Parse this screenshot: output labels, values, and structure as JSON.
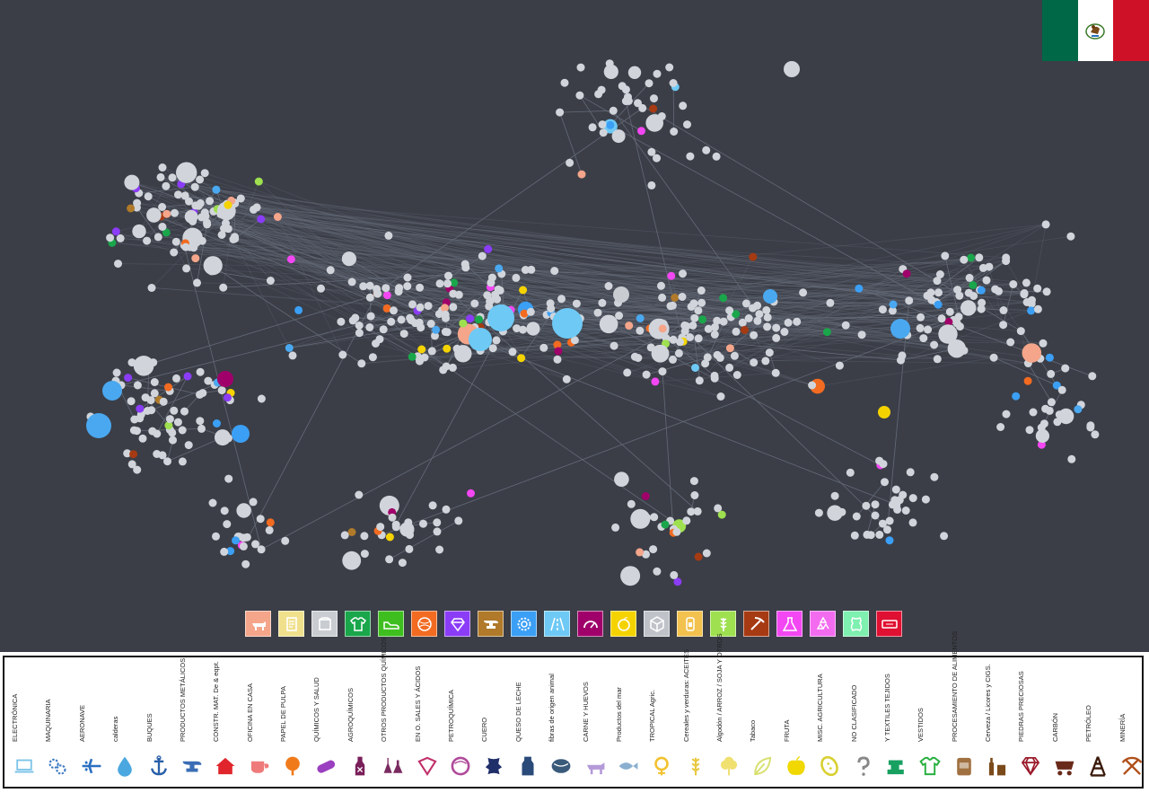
{
  "network": {
    "background": "#3b3e47",
    "edge_color": "#6b7280",
    "default_node_color": "#d1d5db"
  },
  "flag": {
    "icon": "mexico-flag-icon",
    "colors": [
      "#006847",
      "#ffffff",
      "#ce1126"
    ]
  },
  "category_bar": [
    {
      "icon": "cow-icon",
      "color": "#f4a58a"
    },
    {
      "icon": "document-icon",
      "color": "#f0e08c"
    },
    {
      "icon": "box-outline-icon",
      "color": "#c9ccd1"
    },
    {
      "icon": "shirt-icon",
      "color": "#1aa64b"
    },
    {
      "icon": "shoe-icon",
      "color": "#3fbf1f"
    },
    {
      "icon": "globe-icon",
      "color": "#f26b21"
    },
    {
      "icon": "diamond-icon",
      "color": "#8b3cf7"
    },
    {
      "icon": "anvil-icon",
      "color": "#b07a2a"
    },
    {
      "icon": "gear-icon",
      "color": "#3b9ff5"
    },
    {
      "icon": "road-icon",
      "color": "#6ec9f5"
    },
    {
      "icon": "gauge-icon",
      "color": "#a0006a"
    },
    {
      "icon": "fruit-icon",
      "color": "#f5d300"
    },
    {
      "icon": "package-icon",
      "color": "#bfc3c9"
    },
    {
      "icon": "bottle-icon",
      "color": "#f2c14e"
    },
    {
      "icon": "wheat-icon",
      "color": "#9ee04f"
    },
    {
      "icon": "pickaxe-icon",
      "color": "#a63a12"
    },
    {
      "icon": "flask-icon",
      "color": "#f247f2"
    },
    {
      "icon": "recycle-icon",
      "color": "#f36cf0"
    },
    {
      "icon": "leather-icon",
      "color": "#7ef0b0"
    },
    {
      "icon": "ticket-icon",
      "color": "#e01032"
    }
  ],
  "legend": [
    {
      "label": "ELECTRÓNICA",
      "icon": "laptop-icon",
      "color": "#7cc4e8"
    },
    {
      "label": "MAQUINARIA",
      "icon": "gears-icon",
      "color": "#3a78c2"
    },
    {
      "label": "AERONAVE",
      "icon": "airplane-icon",
      "color": "#2a6fc0"
    },
    {
      "label": "calderas",
      "icon": "water-drop-icon",
      "color": "#4aa7e0"
    },
    {
      "label": "BUQUES",
      "icon": "anchor-icon",
      "color": "#2a5fa8"
    },
    {
      "label": "PRODUCTOS METÁLICOS",
      "icon": "anvil-icon",
      "color": "#3a6db5"
    },
    {
      "label": "CONSTR. MAT. De & eqpt.",
      "icon": "house-icon",
      "color": "#e0262c"
    },
    {
      "label": "OFICINA EN CASA",
      "icon": "cup-icon",
      "color": "#ef7a7a"
    },
    {
      "label": "PAPEL DE PULPA",
      "icon": "tree-icon",
      "color": "#f07a1a"
    },
    {
      "label": "QUÍMICOS Y SALUD",
      "icon": "pill-icon",
      "color": "#9a3fc0"
    },
    {
      "label": "AGROQUÍMICOS",
      "icon": "bottle-x-icon",
      "color": "#7a1f5a"
    },
    {
      "label": "OTROS PRODUCTOS QUÍMICOS",
      "icon": "flasks-icon",
      "color": "#7a2a60"
    },
    {
      "label": "EN O. SALES Y ÁCIDOS",
      "icon": "crystal-icon",
      "color": "#c0306a"
    },
    {
      "label": "PETROQUÍMICA",
      "icon": "plastic-icon",
      "color": "#b04a9a"
    },
    {
      "label": "CUERO",
      "icon": "hide-icon",
      "color": "#1f2f6a"
    },
    {
      "label": "QUESO DE LECHE",
      "icon": "milk-icon",
      "color": "#2a4a7a"
    },
    {
      "label": "fibras de origen animal",
      "icon": "yarn-icon",
      "color": "#3a5a7a"
    },
    {
      "label": "CARNE Y HUEVOS",
      "icon": "cow-icon",
      "color": "#b49ad8"
    },
    {
      "label": "Productos del mar",
      "icon": "fish-icon",
      "color": "#8ab0d0"
    },
    {
      "label": "TROPICAL Agric.",
      "icon": "flower-icon",
      "color": "#f2c230"
    },
    {
      "label": "Cereales y verduras: ACEITES",
      "icon": "wheat-icon",
      "color": "#e8c840"
    },
    {
      "label": "Algodón / ARROZ / SOJA Y OTROS",
      "icon": "cotton-icon",
      "color": "#f0e070"
    },
    {
      "label": "Tabaco",
      "icon": "leaf-icon",
      "color": "#d8e070"
    },
    {
      "label": "FRUTA",
      "icon": "apple-icon",
      "color": "#f0d800"
    },
    {
      "label": "MISC. AGRICULTURA",
      "icon": "seed-icon",
      "color": "#d8d030"
    },
    {
      "label": "NO CLASIFICADO",
      "icon": "question-icon",
      "color": "#888888"
    },
    {
      "label": "Y TEXTILES TEJIDOS",
      "icon": "sewing-machine-icon",
      "color": "#18a060"
    },
    {
      "label": "VESTIDOS",
      "icon": "shirt-icon",
      "color": "#28b040"
    },
    {
      "label": "PROCESAMIENTO DE ALIMENTOS",
      "icon": "can-icon",
      "color": "#a07040"
    },
    {
      "label": "Cerveza / Licores y CIGS.",
      "icon": "bottles-icon",
      "color": "#7a4a1a"
    },
    {
      "label": "PIEDRAS PRECIOSAS",
      "icon": "gem-icon",
      "color": "#9a1a2a"
    },
    {
      "label": "CARBÓN",
      "icon": "mine-cart-icon",
      "color": "#6a2a1a"
    },
    {
      "label": "PETRÓLEO",
      "icon": "oil-derrick-icon",
      "color": "#3a1a0a"
    },
    {
      "label": "MINERÍA",
      "icon": "pickaxes-icon",
      "color": "#b0501a"
    }
  ]
}
